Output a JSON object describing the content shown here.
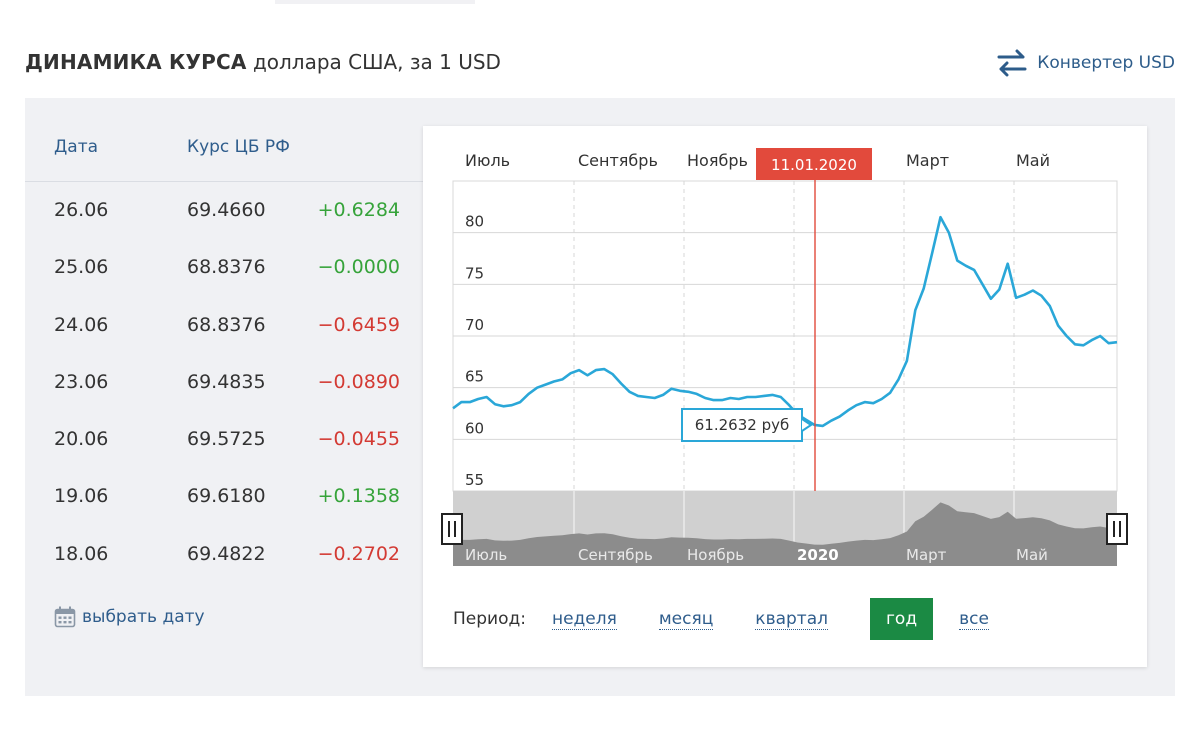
{
  "header": {
    "title_bold": "ДИНАМИКА КУРСА",
    "title_rest": "доллара США, за 1 USD",
    "converter_label": "Конвертер USD",
    "converter_icon": "swap-arrows-icon"
  },
  "table": {
    "col_date": "Дата",
    "col_rate": "Курс ЦБ РФ",
    "rows": [
      {
        "date": "26.06",
        "rate": "69.4660",
        "delta": "+0.6284",
        "dir": "up"
      },
      {
        "date": "25.06",
        "rate": "68.8376",
        "delta": "−0.0000",
        "dir": "up"
      },
      {
        "date": "24.06",
        "rate": "68.8376",
        "delta": "−0.6459",
        "dir": "down"
      },
      {
        "date": "23.06",
        "rate": "69.4835",
        "delta": "−0.0890",
        "dir": "down"
      },
      {
        "date": "20.06",
        "rate": "69.5725",
        "delta": "−0.0455",
        "dir": "down"
      },
      {
        "date": "19.06",
        "rate": "69.6180",
        "delta": "+0.1358",
        "dir": "up"
      },
      {
        "date": "18.06",
        "rate": "69.4822",
        "delta": "−0.2702",
        "dir": "down"
      }
    ],
    "pick_date_label": "выбрать дату",
    "pick_date_icon": "calendar-icon"
  },
  "colors": {
    "positive": "#36a33a",
    "negative": "#d33a33",
    "line": "#2aa7d8",
    "marker": "#e24a3c",
    "active_period": "#1b8a44",
    "link": "#2f5d8c"
  },
  "chart_data": {
    "type": "line",
    "months_top": [
      "Июль",
      "Сентябрь",
      "Ноябрь",
      "Март",
      "Май"
    ],
    "y_ticks": [
      55,
      60,
      65,
      70,
      75,
      80
    ],
    "ylim": [
      55,
      85
    ],
    "marker_date": "11.01.2020",
    "tooltip": "61.2632 руб",
    "navigator_labels": [
      "Июль",
      "Сентябрь",
      "Ноябрь",
      "2020",
      "Март",
      "Май"
    ],
    "series": [
      {
        "values": [
          63.0,
          63.6,
          63.6,
          63.9,
          64.1,
          63.4,
          63.2,
          63.3,
          63.6,
          64.4,
          65.0,
          65.3,
          65.6,
          65.8,
          66.4,
          66.7,
          66.2,
          66.7,
          66.8,
          66.3,
          65.4,
          64.6,
          64.2,
          64.1,
          64.0,
          64.3,
          64.9,
          64.7,
          64.6,
          64.4,
          64.0,
          63.8,
          63.8,
          64.0,
          63.9,
          64.1,
          64.1,
          64.2,
          64.3,
          64.1,
          63.3,
          62.4,
          61.9,
          61.4,
          61.3,
          61.8,
          62.2,
          62.8,
          63.3,
          63.6,
          63.5,
          63.9,
          64.5,
          65.8,
          67.6,
          72.5,
          74.6,
          78.0,
          81.5,
          80.0,
          77.3,
          76.8,
          76.4,
          75.0,
          73.6,
          74.5,
          77.0,
          73.7,
          74.0,
          74.4,
          73.9,
          72.9,
          71.0,
          70.0,
          69.2,
          69.1,
          69.6,
          70.0,
          69.3,
          69.4
        ]
      }
    ],
    "period_label": "Период:",
    "periods": [
      "неделя",
      "месяц",
      "квартал",
      "год",
      "все"
    ],
    "active_period": "год"
  }
}
